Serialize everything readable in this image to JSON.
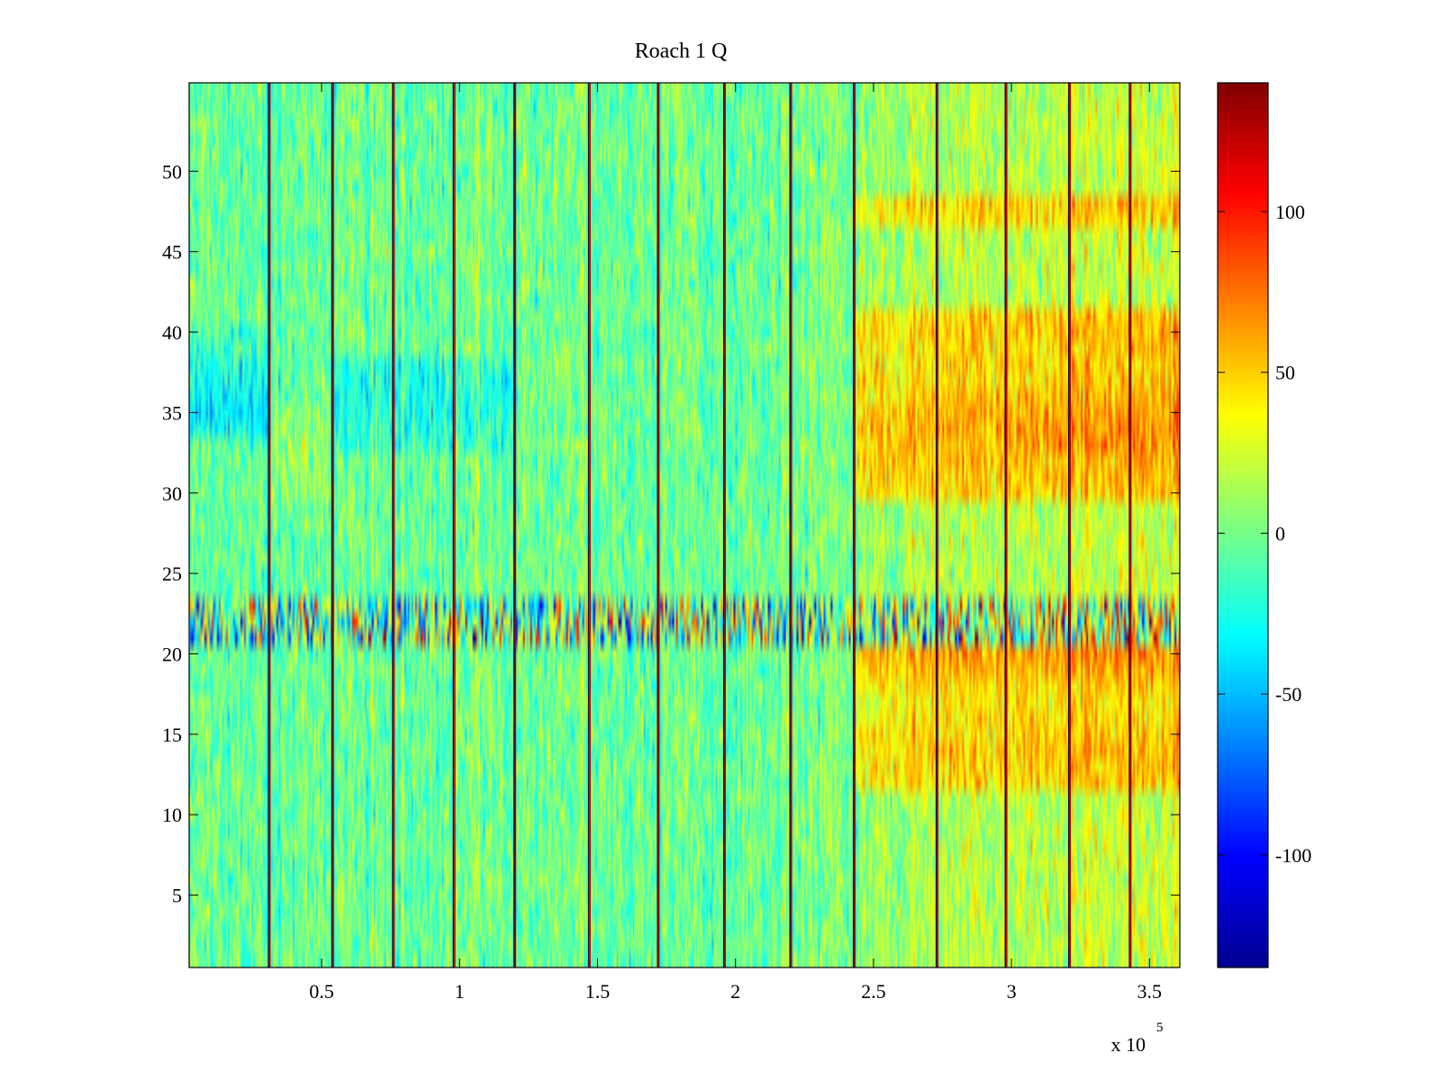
{
  "chart_data": {
    "type": "heatmap",
    "title": "Roach 1 Q",
    "xlabel": "",
    "ylabel": "",
    "xlim": [
      2000,
      361000
    ],
    "ylim": [
      0.5,
      55.5
    ],
    "x_ticks": [
      50000,
      100000,
      150000,
      200000,
      250000,
      300000,
      350000
    ],
    "x_tick_labels": [
      "0.5",
      "1",
      "1.5",
      "2",
      "2.5",
      "3",
      "3.5"
    ],
    "x_exponent_label": "x 10",
    "x_exponent_power": "5",
    "y_ticks": [
      5,
      10,
      15,
      20,
      25,
      30,
      35,
      40,
      45,
      50
    ],
    "y_tick_labels": [
      "5",
      "10",
      "15",
      "20",
      "25",
      "30",
      "35",
      "40",
      "45",
      "50"
    ],
    "colorbar": {
      "colormap": "jet",
      "range": [
        -135,
        140
      ],
      "ticks": [
        -100,
        -50,
        0,
        50,
        100
      ],
      "tick_labels": [
        "-100",
        "-50",
        "0",
        "50",
        "100"
      ]
    },
    "grid": false,
    "spike_columns_x": [
      31000,
      54000,
      76000,
      98000,
      120000,
      147000,
      172000,
      196000,
      220000,
      243000,
      273000,
      298000,
      321000,
      343000
    ],
    "noisy_rows": [
      21,
      22,
      23
    ],
    "row_bias_by_segment": [
      {
        "x_range": [
          2000,
          30000
        ],
        "rows": {
          "34": -25,
          "35": -30,
          "36": -30,
          "37": -28,
          "38": -20,
          "39": -15,
          "40": -10
        }
      },
      {
        "x_range": [
          31000,
          53000
        ],
        "rows": {
          "30": 10,
          "31": 10,
          "32": 12,
          "33": 12,
          "34": 10,
          "35": 8
        }
      },
      {
        "x_range": [
          54000,
          120000
        ],
        "rows": {
          "33": -15,
          "34": -18,
          "35": -20,
          "36": -22,
          "37": -20,
          "38": -15
        }
      },
      {
        "x_range": [
          243000,
          361000
        ],
        "rows": {
          "12": 30,
          "13": 32,
          "14": 35,
          "15": 30,
          "16": 25,
          "17": 25,
          "18": 28,
          "19": 40,
          "20": 45,
          "21": 40,
          "30": 30,
          "31": 35,
          "32": 35,
          "33": 40,
          "34": 45,
          "35": 40,
          "36": 35,
          "37": 30,
          "38": 30,
          "39": 30,
          "40": 35,
          "41": 30,
          "47": 25,
          "48": 30
        }
      }
    ],
    "global_trend": {
      "x": [
        2000,
        240000,
        270000,
        361000
      ],
      "mean": [
        -5,
        0,
        15,
        25
      ]
    }
  }
}
